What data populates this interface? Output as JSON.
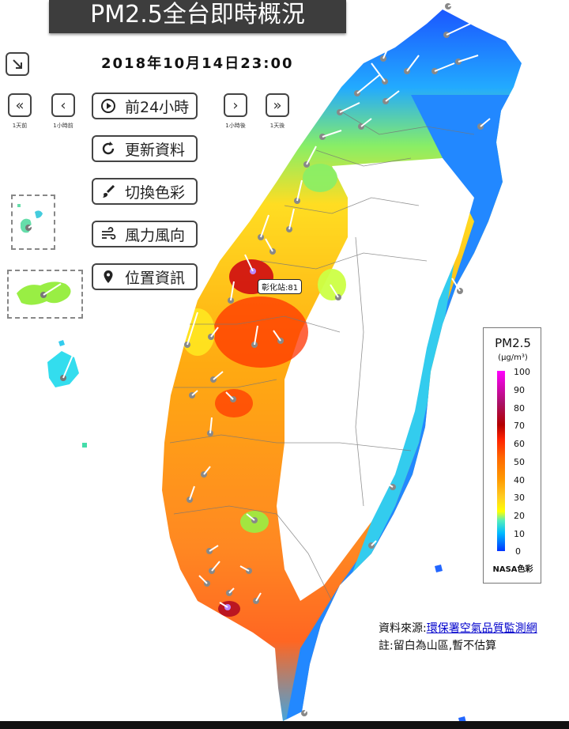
{
  "header": {
    "title": "PM2.5全台即時概況",
    "datetime": "2018年10月14日23:00"
  },
  "nav": {
    "expand_icon": "arrow-down-right-icon",
    "prev_day_caption": "1天前",
    "prev_hour_caption": "1小時前",
    "next_hour_caption": "1小時後",
    "next_day_caption": "1天後"
  },
  "menu": {
    "play_label": "前24小時",
    "refresh_label": "更新資料",
    "color_label": "切換色彩",
    "wind_label": "風力風向",
    "location_label": "位置資訊"
  },
  "map": {
    "station_label": "彰化站:81"
  },
  "legend": {
    "title": "PM2.5",
    "unit": "(μg/m³)",
    "ticks": [
      "100",
      "90",
      "80",
      "70",
      "60",
      "50",
      "40",
      "30",
      "20",
      "10",
      "0"
    ],
    "caption": "NASA色彩"
  },
  "footer": {
    "source_prefix": "資料來源:",
    "source_link": "環保署空氣品質監測網",
    "note": "註:留白為山區,暫不估算"
  },
  "colors": {
    "clean": "#1a4dff",
    "moderate": "#ffcc22",
    "high": "#ff3300",
    "very_high": "#8b0011"
  }
}
